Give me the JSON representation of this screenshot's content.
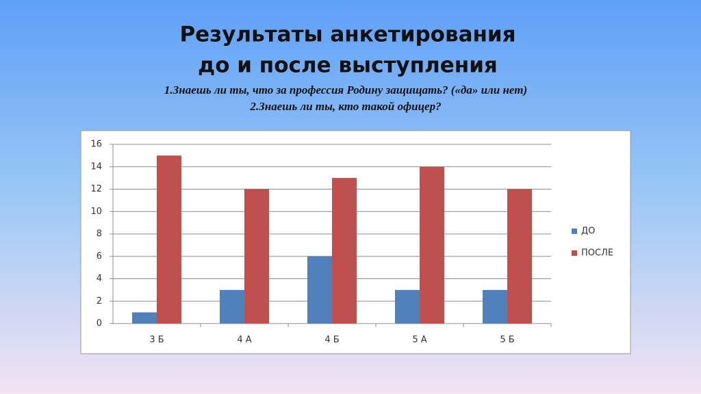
{
  "chart_data": {
    "type": "bar",
    "title": [
      "Результаты анкетирования",
      "до и после  выступления"
    ],
    "subtitle": [
      "1.Знаешь ли ты, что за профессия Родину защищать? («да» или нет)",
      "2.Знаешь ли ты, кто такой офицер?"
    ],
    "categories": [
      "3 Б",
      "4 А",
      "4 Б",
      "5 А",
      "5 Б"
    ],
    "series": [
      {
        "name": "ДО",
        "color": "#4f81bd",
        "values": [
          1,
          3,
          6,
          3,
          3
        ]
      },
      {
        "name": "ПОСЛЕ",
        "color": "#c0504d",
        "values": [
          15,
          12,
          13,
          14,
          12
        ]
      }
    ],
    "ylim": [
      0,
      16
    ],
    "yticks": [
      0,
      2,
      4,
      6,
      8,
      10,
      12,
      14,
      16
    ],
    "grid": true,
    "legend": "right"
  }
}
